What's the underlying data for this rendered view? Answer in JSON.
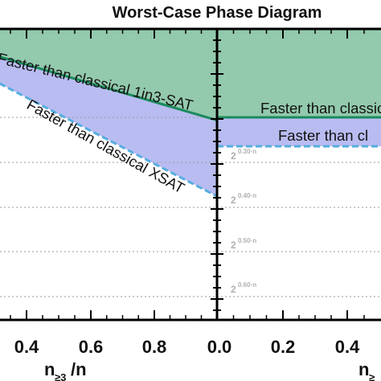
{
  "chart_data": {
    "type": "area",
    "title": "Worst-Case Phase Diagram",
    "xlabel_main": "n",
    "xlabel_sub": "≥3",
    "xlabel_tail": "/n",
    "right_xlabel_main": "n",
    "right_xlabel_sub": "≥",
    "left_xticks": [
      "0.4",
      "0.6",
      "0.8",
      "0.0"
    ],
    "right_xticks": [
      "0.2",
      "0.4"
    ],
    "left_panel": {
      "x_range": [
        0.25,
        1.0
      ],
      "y_range": [
        0.0,
        0.7
      ],
      "boundaries": [
        {
          "name": "Faster than classical 1in3-SAT",
          "x": [
            0.25,
            1.0
          ],
          "y": [
            0.06,
            0.24
          ],
          "color": "#1a8a5c"
        },
        {
          "name": "Faster than classical XSAT",
          "x": [
            0.25,
            1.0
          ],
          "y": [
            0.12,
            0.44
          ],
          "color": "#55aee0"
        }
      ]
    },
    "right_panel": {
      "x_range": [
        0.0,
        0.5
      ],
      "y_levels": [
        "0.30",
        "0.40",
        "0.50",
        "0.60"
      ],
      "y_prefix": "2",
      "y_suffix": "·n",
      "boundaries": [
        {
          "name": "Faster than classic",
          "y": 0.205,
          "color": "#1a8a5c"
        },
        {
          "name": "Faster than cl",
          "y": 0.27,
          "color": "#55aee0"
        }
      ]
    },
    "colors": {
      "green_fill": "#93c9ad",
      "blue_fill": "#b9bcf1",
      "green_line": "#1a8a5c",
      "blue_line": "#55aee0",
      "grid": "#9a9a9a"
    },
    "grid": true
  }
}
